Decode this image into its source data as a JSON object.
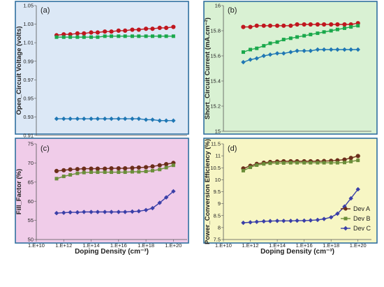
{
  "chart_data": [
    {
      "id": "a",
      "type": "line",
      "panel_label": "(a)",
      "ylabel": "Open_Circuit Voltage (volts)",
      "xlabel": "",
      "x_scale": "log",
      "xlim": [
        10000000000.0,
        1e+21
      ],
      "ylim": [
        0.91,
        1.05
      ],
      "yticks": [
        "0.91",
        "0.93",
        "0.95",
        "0.97",
        "0.99",
        "1.01",
        "1.03",
        "1.05"
      ],
      "background": "#dce8f6",
      "grid": false,
      "x": [
        300000000000.0,
        1000000000000.0,
        3000000000000.0,
        10000000000000.0,
        30000000000000.0,
        100000000000000.0,
        300000000000000.0,
        1000000000000000.0,
        3000000000000000.0,
        1e+16,
        3e+16,
        1e+17,
        3e+17,
        1e+18,
        3e+18,
        1e+19,
        3e+19,
        1e+20
      ],
      "series": [
        {
          "name": "Dev A",
          "color": "#c0171f",
          "marker": "circle",
          "values": [
            1.018,
            1.019,
            1.019,
            1.02,
            1.02,
            1.021,
            1.021,
            1.022,
            1.022,
            1.023,
            1.023,
            1.024,
            1.024,
            1.025,
            1.025,
            1.026,
            1.026,
            1.027
          ]
        },
        {
          "name": "Dev B",
          "color": "#1aa84b",
          "marker": "square",
          "values": [
            1.016,
            1.016,
            1.016,
            1.016,
            1.016,
            1.016,
            1.016,
            1.017,
            1.017,
            1.017,
            1.017,
            1.017,
            1.017,
            1.017,
            1.017,
            1.017,
            1.017,
            1.017
          ]
        },
        {
          "name": "Dev C",
          "color": "#1f77b4",
          "marker": "diamond",
          "values": [
            0.928,
            0.928,
            0.928,
            0.928,
            0.928,
            0.928,
            0.928,
            0.928,
            0.928,
            0.928,
            0.928,
            0.928,
            0.928,
            0.927,
            0.927,
            0.926,
            0.926,
            0.926
          ]
        }
      ]
    },
    {
      "id": "b",
      "type": "line",
      "panel_label": "(b)",
      "ylabel": "Short_Circuit Current (mA.cm⁻²)",
      "xlabel": "",
      "x_scale": "log",
      "xlim": [
        10000000000.0,
        1e+21
      ],
      "ylim": [
        15,
        16
      ],
      "yticks": [
        "15",
        "15.2",
        "15.4",
        "15.6",
        "15.8",
        "16"
      ],
      "background": "#d9f1d3",
      "grid": false,
      "x": [
        300000000000.0,
        1000000000000.0,
        3000000000000.0,
        10000000000000.0,
        30000000000000.0,
        100000000000000.0,
        300000000000000.0,
        1000000000000000.0,
        3000000000000000.0,
        1e+16,
        3e+16,
        1e+17,
        3e+17,
        1e+18,
        3e+18,
        1e+19,
        3e+19,
        1e+20
      ],
      "series": [
        {
          "name": "Dev A",
          "color": "#c0171f",
          "marker": "circle",
          "values": [
            15.83,
            15.83,
            15.84,
            15.84,
            15.84,
            15.84,
            15.84,
            15.84,
            15.85,
            15.85,
            15.85,
            15.85,
            15.85,
            15.85,
            15.85,
            15.85,
            15.85,
            15.86
          ]
        },
        {
          "name": "Dev B",
          "color": "#1aa84b",
          "marker": "square",
          "values": [
            15.63,
            15.65,
            15.66,
            15.68,
            15.7,
            15.71,
            15.73,
            15.74,
            15.75,
            15.76,
            15.77,
            15.78,
            15.79,
            15.8,
            15.81,
            15.82,
            15.83,
            15.84
          ]
        },
        {
          "name": "Dev C",
          "color": "#1f77b4",
          "marker": "diamond",
          "values": [
            15.55,
            15.57,
            15.58,
            15.6,
            15.61,
            15.62,
            15.62,
            15.63,
            15.64,
            15.64,
            15.64,
            15.65,
            15.65,
            15.65,
            15.65,
            15.65,
            15.65,
            15.65
          ]
        }
      ]
    },
    {
      "id": "c",
      "type": "line",
      "panel_label": "(c)",
      "ylabel": "Fill_Factor (%)",
      "xlabel": "Doping Density (cm⁻³)",
      "x_scale": "log",
      "xlim": [
        10000000000.0,
        1e+21
      ],
      "ylim": [
        50,
        75
      ],
      "yticks": [
        "50",
        "55",
        "60",
        "65",
        "70",
        "75"
      ],
      "xticks": [
        "1.E+10",
        "1.E+12",
        "1.E+14",
        "1.E+16",
        "1.E+18",
        "1.E+20"
      ],
      "background": "#f0cce9",
      "grid": false,
      "x": [
        300000000000.0,
        1000000000000.0,
        3000000000000.0,
        10000000000000.0,
        30000000000000.0,
        100000000000000.0,
        300000000000000.0,
        1000000000000000.0,
        3000000000000000.0,
        1e+16,
        3e+16,
        1e+17,
        3e+17,
        1e+18,
        3e+18,
        1e+19,
        3e+19,
        1e+20
      ],
      "series": [
        {
          "name": "Dev A",
          "color": "#6b2e1a",
          "marker": "circle",
          "values": [
            67.9,
            68.1,
            68.3,
            68.4,
            68.5,
            68.5,
            68.5,
            68.5,
            68.6,
            68.6,
            68.6,
            68.7,
            68.8,
            68.9,
            69.1,
            69.4,
            69.7,
            70.0
          ]
        },
        {
          "name": "Dev B",
          "color": "#6b8e3a",
          "marker": "square",
          "values": [
            65.9,
            66.5,
            66.9,
            67.3,
            67.5,
            67.6,
            67.6,
            67.6,
            67.6,
            67.6,
            67.6,
            67.7,
            67.7,
            67.8,
            68.0,
            68.3,
            68.8,
            69.4
          ]
        },
        {
          "name": "Dev C",
          "color": "#3a3fa8",
          "marker": "diamond",
          "values": [
            56.9,
            57.0,
            57.1,
            57.1,
            57.2,
            57.2,
            57.2,
            57.2,
            57.2,
            57.2,
            57.2,
            57.3,
            57.4,
            57.7,
            58.2,
            59.6,
            61.0,
            62.6
          ]
        }
      ]
    },
    {
      "id": "d",
      "type": "line",
      "panel_label": "(d)",
      "ylabel": "Power_Conversion Efficiency (%)",
      "xlabel": "Doping Density (cm⁻³)",
      "x_scale": "log",
      "xlim": [
        10000000000.0,
        1e+21
      ],
      "ylim": [
        7.5,
        11.5
      ],
      "yticks": [
        "7.5",
        "8",
        "8.5",
        "9",
        "9.5",
        "10",
        "10.5",
        "11",
        "11.5"
      ],
      "xticks": [
        "1.E+10",
        "1.E+12",
        "1.E+14",
        "1.E+16",
        "1.E+18",
        "1.E+20"
      ],
      "background": "#f7f6c4",
      "grid": false,
      "legend_position": "bottom-right",
      "x": [
        300000000000.0,
        1000000000000.0,
        3000000000000.0,
        10000000000000.0,
        30000000000000.0,
        100000000000000.0,
        300000000000000.0,
        1000000000000000.0,
        3000000000000000.0,
        1e+16,
        3e+16,
        1e+17,
        3e+17,
        1e+18,
        3e+18,
        1e+19,
        3e+19,
        1e+20
      ],
      "series": [
        {
          "name": "Dev A",
          "color": "#6b2e1a",
          "marker": "circle",
          "values": [
            10.47,
            10.58,
            10.66,
            10.71,
            10.74,
            10.76,
            10.77,
            10.77,
            10.77,
            10.77,
            10.77,
            10.77,
            10.78,
            10.79,
            10.81,
            10.84,
            10.91,
            10.99
          ]
        },
        {
          "name": "Dev B",
          "color": "#6b8e3a",
          "marker": "square",
          "values": [
            10.38,
            10.52,
            10.61,
            10.66,
            10.69,
            10.7,
            10.7,
            10.71,
            10.71,
            10.71,
            10.71,
            10.71,
            10.71,
            10.71,
            10.71,
            10.72,
            10.76,
            10.81
          ]
        },
        {
          "name": "Dev C",
          "color": "#3a3fa8",
          "marker": "diamond",
          "values": [
            8.2,
            8.22,
            8.24,
            8.26,
            8.27,
            8.28,
            8.28,
            8.28,
            8.29,
            8.29,
            8.3,
            8.32,
            8.36,
            8.43,
            8.58,
            8.88,
            9.22,
            9.6
          ]
        }
      ]
    }
  ]
}
